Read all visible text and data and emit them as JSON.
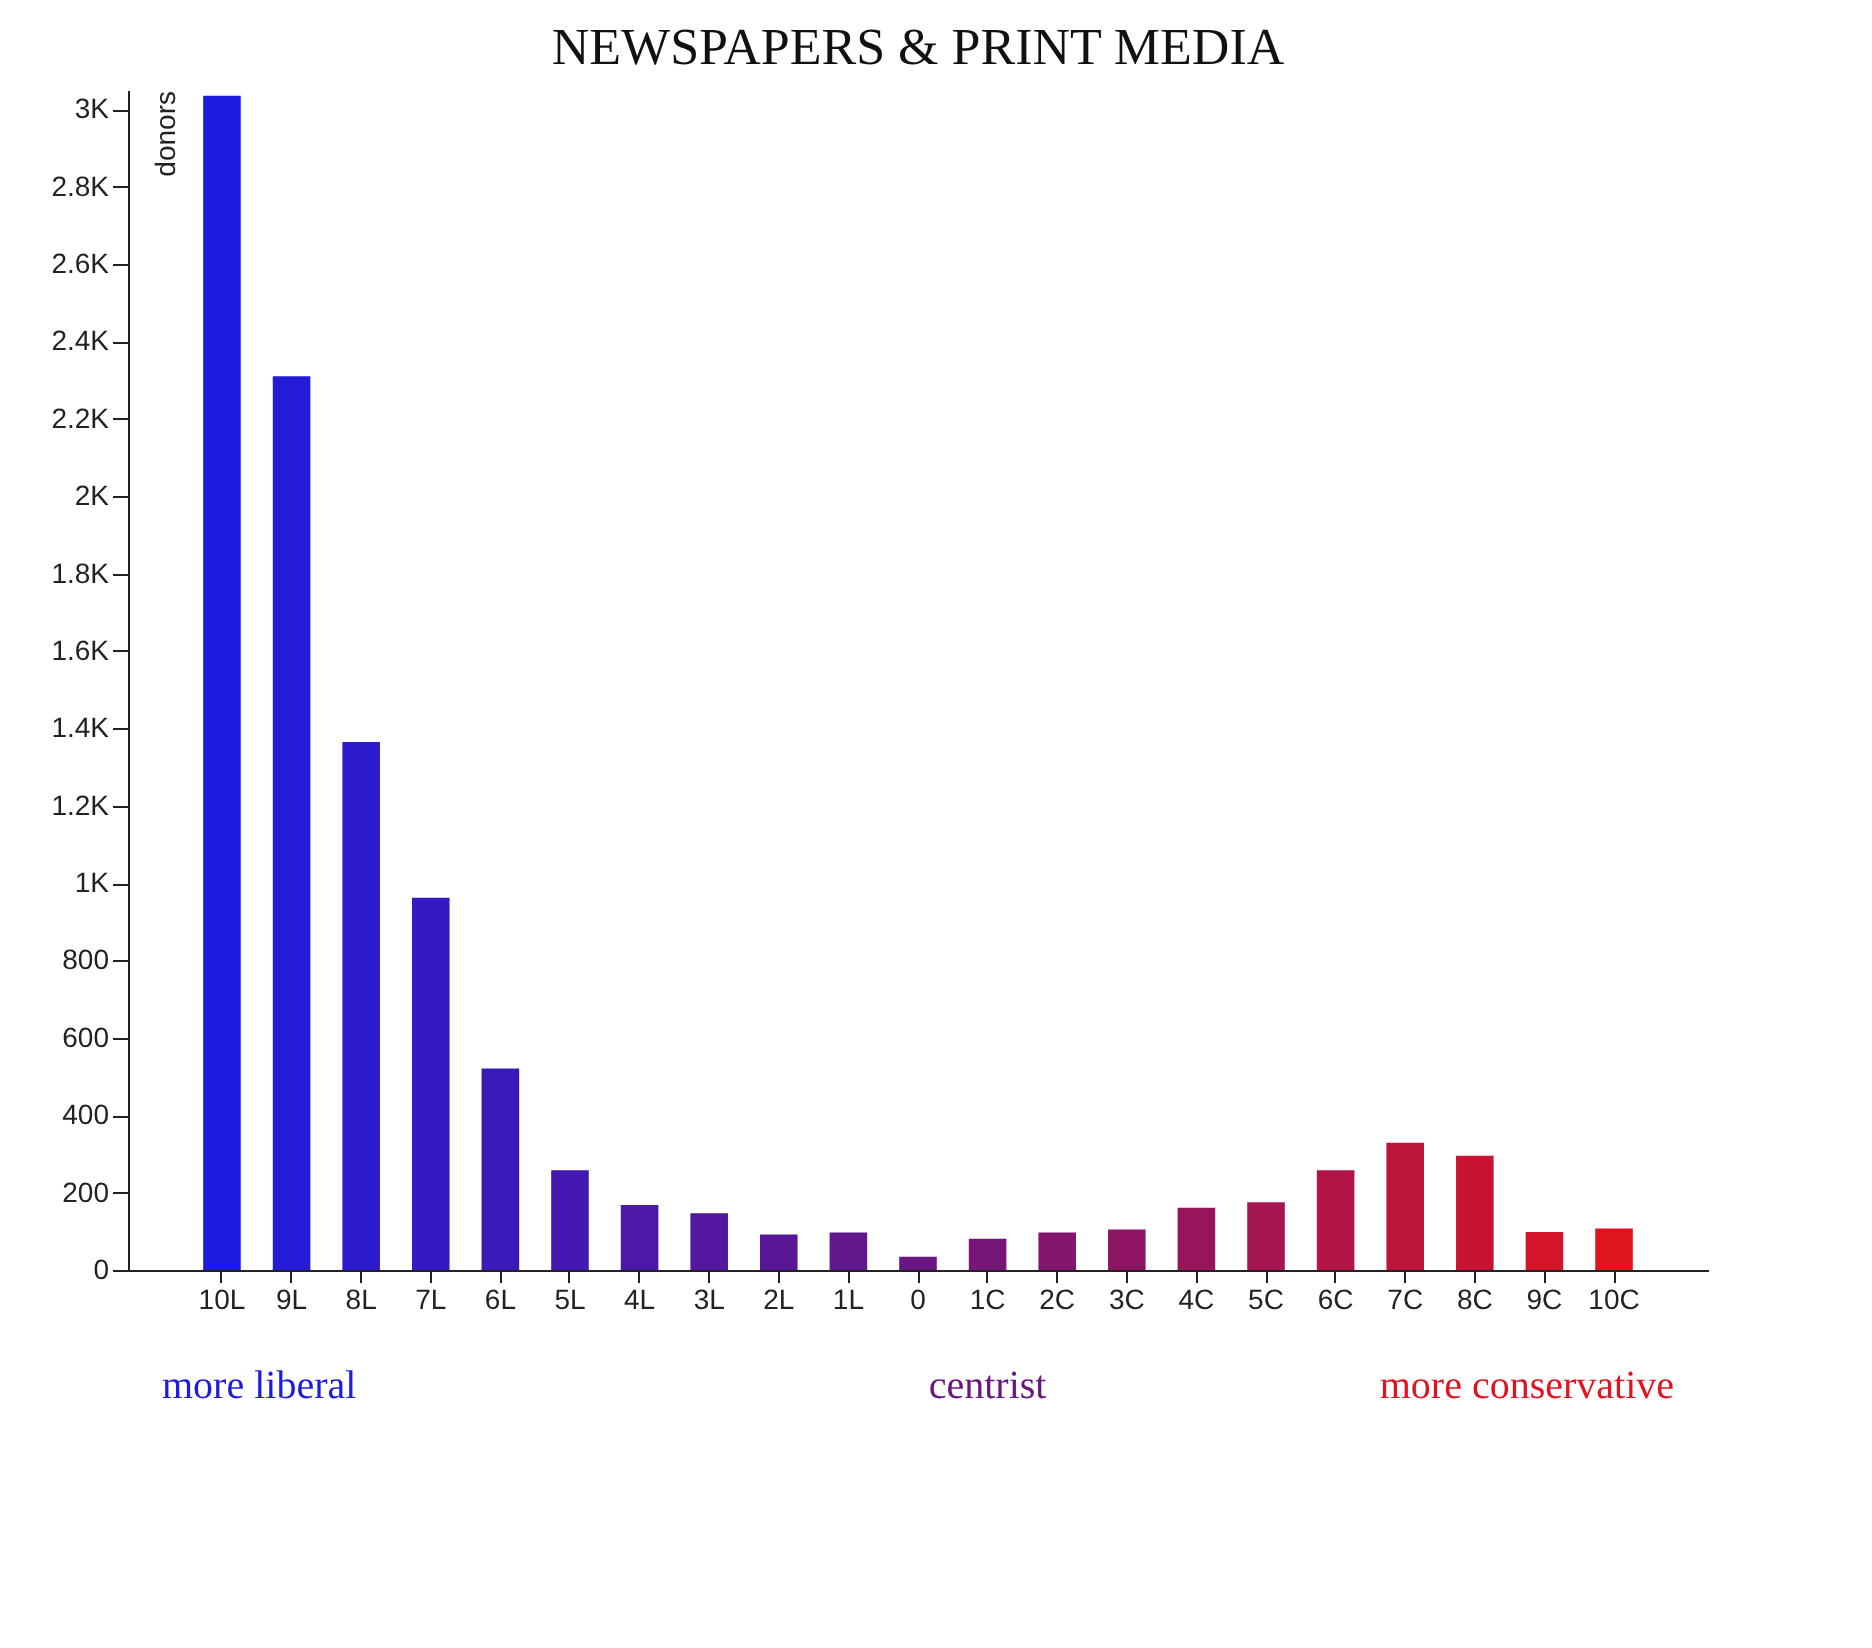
{
  "chart_data": {
    "type": "bar",
    "title": "NEWSPAPERS & PRINT MEDIA",
    "ylabel": "donors",
    "categories": [
      "10L",
      "9L",
      "8L",
      "7L",
      "6L",
      "5L",
      "4L",
      "3L",
      "2L",
      "1L",
      "0",
      "1C",
      "2C",
      "3C",
      "4C",
      "5C",
      "6C",
      "7C",
      "8C",
      "9C",
      "10C"
    ],
    "values": [
      3035,
      2310,
      1365,
      962,
      521,
      258,
      168,
      147,
      92,
      97,
      34,
      81,
      97,
      105,
      161,
      175,
      258,
      329,
      295,
      98,
      107
    ],
    "colors": [
      "#1c1ce0",
      "#241bd7",
      "#2c1bcd",
      "#331ac4",
      "#3b1aba",
      "#4319b1",
      "#4b18a8",
      "#53189e",
      "#5a1795",
      "#62178b",
      "#6a1682",
      "#761678",
      "#82166e",
      "#8d1564",
      "#99155a",
      "#a51550",
      "#b11546",
      "#bd153c",
      "#c81432",
      "#d41428",
      "#e0141e"
    ],
    "ylim": [
      0,
      3050
    ],
    "yticks": [
      0,
      200,
      400,
      600,
      800,
      {
        "value": 1000,
        "label": "1K"
      },
      {
        "value": 1200,
        "label": "1.2K"
      },
      {
        "value": 1400,
        "label": "1.4K"
      },
      {
        "value": 1600,
        "label": "1.6K"
      },
      {
        "value": 1800,
        "label": "1.8K"
      },
      {
        "value": 2000,
        "label": "2K"
      },
      {
        "value": 2200,
        "label": "2.2K"
      },
      {
        "value": 2400,
        "label": "2.4K"
      },
      {
        "value": 2600,
        "label": "2.6K"
      },
      {
        "value": 2800,
        "label": "2.8K"
      },
      {
        "value": 3000,
        "label": "3K"
      }
    ],
    "annotations": [
      "more liberal",
      "centrist",
      "more conservative"
    ],
    "grid": false
  }
}
